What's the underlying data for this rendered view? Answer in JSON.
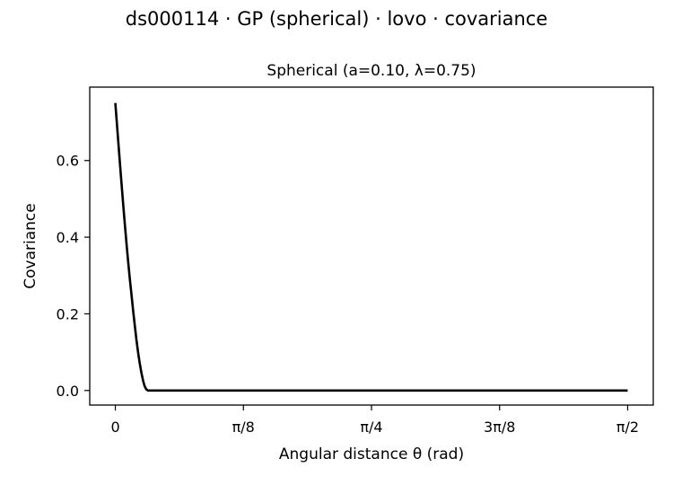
{
  "figure": {
    "suptitle": "ds000114 · GP (spherical) · lovo · covariance"
  },
  "chart_data": {
    "type": "line",
    "title": "Spherical (a=0.10, λ=0.75)",
    "xlabel": "Angular distance θ (rad)",
    "ylabel": "Covariance",
    "xlim": [
      -0.0785,
      1.6493
    ],
    "ylim": [
      -0.038,
      0.7915
    ],
    "grid": false,
    "legend": "none",
    "line_color": "#000000",
    "xticks": [
      {
        "value": 0,
        "label": "0"
      },
      {
        "value": 0.392699,
        "label": "π/8"
      },
      {
        "value": 0.785398,
        "label": "π/4"
      },
      {
        "value": 1.178097,
        "label": "3π/8"
      },
      {
        "value": 1.570796,
        "label": "π/2"
      }
    ],
    "yticks": [
      {
        "value": 0.0,
        "label": "0.0"
      },
      {
        "value": 0.2,
        "label": "0.2"
      },
      {
        "value": 0.4,
        "label": "0.4"
      },
      {
        "value": 0.6,
        "label": "0.6"
      }
    ],
    "series": [
      {
        "x": [
          0,
          0.005,
          0.01,
          0.015,
          0.02,
          0.025,
          0.03,
          0.035,
          0.04,
          0.045,
          0.05,
          0.055,
          0.06,
          0.065,
          0.07,
          0.075,
          0.08,
          0.085,
          0.09,
          0.095,
          0.1,
          0.2,
          0.4,
          0.6,
          0.8,
          1.0,
          1.2,
          1.4,
          1.570796
        ],
        "y": [
          0.75,
          0.6939,
          0.6381,
          0.583,
          0.5288,
          0.4761,
          0.4251,
          0.3762,
          0.3298,
          0.2862,
          0.2461,
          0.205,
          0.167,
          0.13,
          0.098,
          0.07,
          0.046,
          0.026,
          0.011,
          0.003,
          0,
          0,
          0,
          0,
          0,
          0,
          0,
          0,
          0
        ]
      }
    ]
  }
}
